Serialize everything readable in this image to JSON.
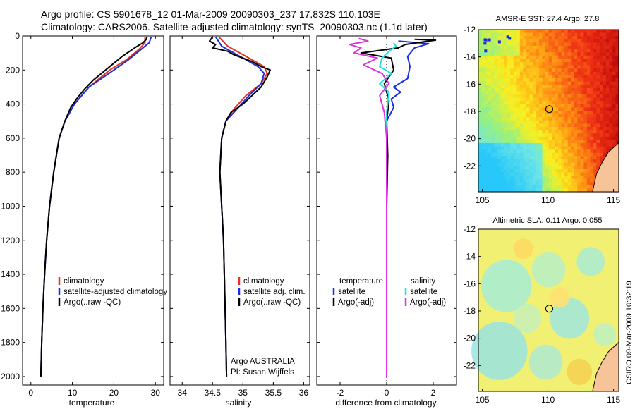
{
  "header": {
    "line1": "Argo profile: CS 5901678_12 01-Mar-2009 20090303_237 17.832S 110.103E",
    "line2": "Climatology: CARS2006. Satellite-adjusted climatology: synTS_20090303.nc (1.1d later)"
  },
  "colors": {
    "climatology": "#e8321c",
    "satellite": "#1a2ee0",
    "argo": "#000000",
    "salinity_satellite": "#22e0e0",
    "salinity_argo": "#e032e0"
  },
  "chart_data": [
    {
      "type": "line",
      "panel": "temperature",
      "xlabel": "temperature",
      "ylabel": "",
      "xlim": [
        -2,
        32
      ],
      "ylim": [
        2050,
        0
      ],
      "xticks": [
        "0",
        "10",
        "20",
        "30"
      ],
      "yticks": [
        "0",
        "200",
        "400",
        "600",
        "800",
        "1000",
        "1200",
        "1400",
        "1600",
        "1800",
        "2000"
      ],
      "legend": [
        "climatology",
        "satellite-adjusted climatology",
        "Argo(..raw -QC)"
      ],
      "series": [
        {
          "name": "climatology",
          "color": "#e8321c",
          "x": [
            27.5,
            27.5,
            26,
            23,
            19,
            14,
            10.5,
            8.2,
            6.8,
            5.5,
            4.5,
            3.8,
            3.3,
            2.9,
            2.6,
            2.4
          ],
          "y": [
            5,
            40,
            80,
            140,
            200,
            300,
            400,
            500,
            600,
            800,
            1000,
            1200,
            1400,
            1600,
            1800,
            2000
          ]
        },
        {
          "name": "satellite-adjusted climatology",
          "color": "#1a2ee0",
          "x": [
            29,
            28.5,
            26.5,
            23.5,
            20,
            14,
            10.5,
            8.2,
            6.8,
            5.5,
            4.5,
            3.8,
            3.3,
            2.9,
            2.6,
            2.4
          ],
          "y": [
            5,
            40,
            80,
            140,
            200,
            300,
            400,
            500,
            600,
            800,
            1000,
            1200,
            1400,
            1600,
            1800,
            2000
          ]
        },
        {
          "name": "Argo(..raw -QC)",
          "color": "#000000",
          "x": [
            28,
            27.8,
            27,
            25,
            22,
            18,
            15,
            13,
            11,
            9.6,
            8.2,
            6.8,
            5.5,
            4.5,
            3.8,
            3.3,
            2.9,
            2.6,
            2.4
          ],
          "y": [
            5,
            20,
            40,
            70,
            120,
            200,
            260,
            310,
            370,
            420,
            500,
            600,
            800,
            1000,
            1200,
            1400,
            1600,
            1800,
            2000
          ]
        }
      ]
    },
    {
      "type": "line",
      "panel": "salinity",
      "xlabel": "salinity",
      "xlim": [
        33.8,
        36.1
      ],
      "ylim": [
        2050,
        0
      ],
      "xticks": [
        "34",
        "34.5",
        "35",
        "35.5",
        "36"
      ],
      "legend": [
        "climatology",
        "satellite adj. clim.",
        "Argo(..raw -QC)"
      ],
      "annotation": [
        "Argo AUSTRALIA",
        "PI: Susan Wijffels"
      ],
      "series": [
        {
          "name": "climatology",
          "color": "#e8321c",
          "x": [
            34.6,
            34.75,
            34.95,
            35.15,
            35.35,
            35.4,
            35.3,
            35.05,
            34.85,
            34.72,
            34.65,
            34.62,
            34.65,
            34.68,
            34.7,
            34.72,
            34.73
          ],
          "y": [
            5,
            60,
            100,
            140,
            180,
            220,
            280,
            350,
            430,
            500,
            600,
            800,
            1000,
            1200,
            1500,
            1800,
            2000
          ]
        },
        {
          "name": "satellite adj. clim.",
          "color": "#1a2ee0",
          "x": [
            34.55,
            34.65,
            34.85,
            35.05,
            35.25,
            35.35,
            35.3,
            35.1,
            34.9,
            34.72,
            34.65,
            34.62,
            34.65,
            34.68,
            34.7,
            34.72,
            34.73
          ],
          "y": [
            5,
            60,
            100,
            140,
            180,
            220,
            280,
            350,
            430,
            500,
            600,
            800,
            1000,
            1200,
            1500,
            1800,
            2000
          ]
        },
        {
          "name": "Argo(..raw -QC)",
          "color": "#000000",
          "x": [
            34.5,
            34.45,
            34.55,
            34.5,
            34.75,
            34.85,
            35.0,
            35.15,
            35.3,
            35.45,
            35.4,
            35.3,
            35.0,
            34.8,
            34.72,
            34.65,
            34.62,
            34.65,
            34.68,
            34.7,
            34.72,
            34.73
          ],
          "y": [
            5,
            30,
            50,
            70,
            90,
            110,
            130,
            150,
            180,
            200,
            240,
            300,
            400,
            450,
            500,
            600,
            800,
            1000,
            1200,
            1500,
            1800,
            2000
          ]
        }
      ]
    },
    {
      "type": "line",
      "panel": "difference",
      "xlabel": "difference from climatology",
      "xlim": [
        -3,
        3
      ],
      "ylim": [
        2050,
        0
      ],
      "xticks": [
        "-2",
        "0",
        "2"
      ],
      "legend_left": [
        "temperature",
        "satellite",
        "Argo(-adj)"
      ],
      "legend_right": [
        "salinity",
        "satellite",
        "Argo(-adj)"
      ],
      "series": [
        {
          "name": "temperature satellite",
          "color": "#1a2ee0",
          "x": [
            0.5,
            1.8,
            1.2,
            0.9,
            1.0,
            0.9,
            0.3,
            0.6,
            0.2,
            0.3,
            0,
            0,
            0
          ],
          "y": [
            30,
            45,
            70,
            120,
            180,
            250,
            300,
            330,
            370,
            420,
            500,
            800,
            2000
          ]
        },
        {
          "name": "temperature Argo(-adj)",
          "color": "#000000",
          "x": [
            1.2,
            2.1,
            1.8,
            0.8,
            0.5,
            -0.3,
            -1.1,
            0.2,
            0.3,
            -0.1,
            0.1,
            0,
            0.05,
            0,
            0
          ],
          "y": [
            20,
            25,
            30,
            50,
            70,
            85,
            100,
            130,
            200,
            280,
            380,
            500,
            700,
            1000,
            2000
          ]
        },
        {
          "name": "salinity satellite",
          "color": "#22e0e0",
          "x": [
            0.3,
            0.4,
            0.1,
            -0.2,
            -0.3,
            0.2,
            -0.3,
            0.1,
            0,
            0
          ],
          "y": [
            40,
            60,
            90,
            130,
            180,
            220,
            280,
            330,
            450,
            2000
          ]
        },
        {
          "name": "salinity Argo(-adj)",
          "color": "#e032e0",
          "x": [
            -1.2,
            -0.8,
            -1.6,
            -1.1,
            -1.4,
            -0.4,
            -1.0,
            -0.2,
            0.1,
            -0.3,
            -0.1,
            0,
            0
          ],
          "y": [
            15,
            30,
            50,
            70,
            100,
            130,
            170,
            220,
            280,
            350,
            450,
            600,
            2000
          ]
        }
      ]
    },
    {
      "type": "heatmap",
      "panel": "sst-map",
      "title": "AMSR-E SST: 27.4 Argo: 27.8",
      "xlim": [
        104.7,
        115.4
      ],
      "ylim": [
        -23.9,
        -12
      ],
      "xticks": [
        "105",
        "110",
        "115"
      ],
      "yticks": [
        "-12",
        "-14",
        "-16",
        "-18",
        "-20",
        "-22"
      ],
      "marker": {
        "lon": 110.103,
        "lat": -17.832
      }
    },
    {
      "type": "heatmap",
      "panel": "sla-map",
      "title": "Altimetric SLA: 0.11 Argo: 0.055",
      "xlim": [
        104.7,
        115.4
      ],
      "ylim": [
        -23.9,
        -12
      ],
      "xticks": [
        "105",
        "110",
        "115"
      ],
      "yticks": [
        "-12",
        "-14",
        "-16",
        "-18",
        "-20",
        "-22"
      ],
      "marker": {
        "lon": 110.103,
        "lat": -17.832
      }
    }
  ],
  "footer": {
    "credit": "CSIRO 09-Mar-2009 10:32:19"
  }
}
